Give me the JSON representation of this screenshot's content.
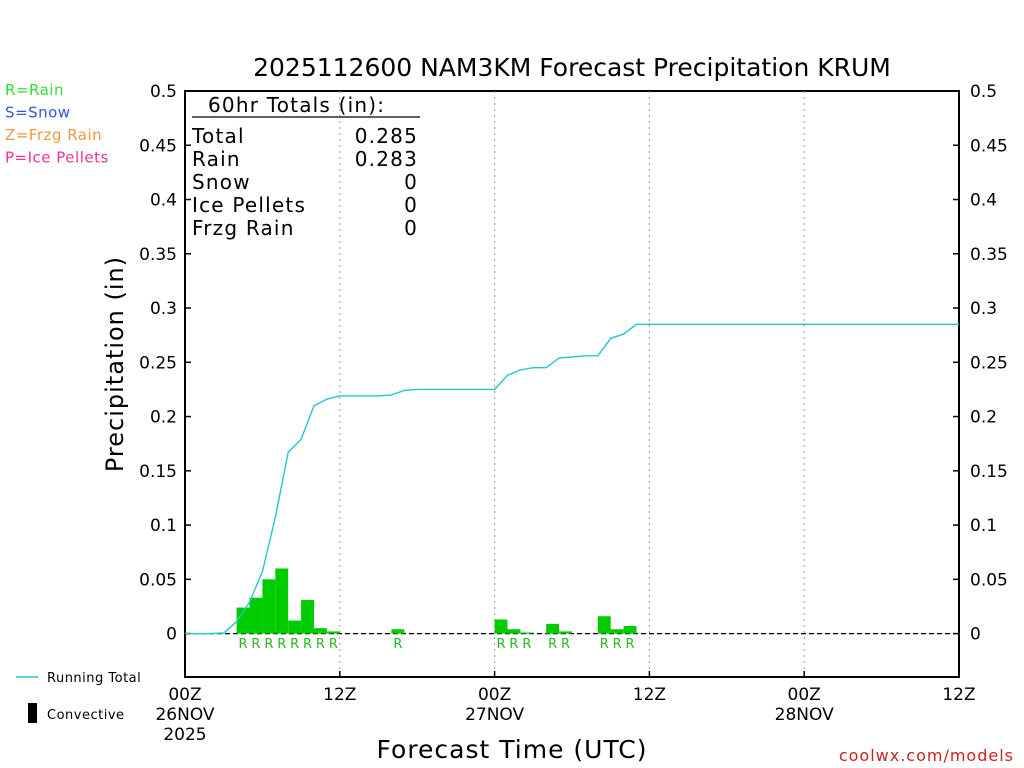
{
  "chart_data": {
    "type": "bar+line",
    "title": "2025112600 NAM3KM Forecast Precipitation KRUM",
    "xlabel": "Forecast Time (UTC)",
    "ylabel": "Precipitation (in)",
    "ylim": [
      -0.04,
      0.5
    ],
    "xlim_hours": [
      0,
      60
    ],
    "y_ticks": [
      "0",
      "0.05",
      "0.1",
      "0.15",
      "0.2",
      "0.25",
      "0.3",
      "0.35",
      "0.4",
      "0.45",
      "0.5"
    ],
    "y_tick_values": [
      0,
      0.05,
      0.1,
      0.15,
      0.2,
      0.25,
      0.3,
      0.35,
      0.4,
      0.45,
      0.5
    ],
    "x_ticks": [
      {
        "hour": 0,
        "line1": "00Z",
        "line2": "26NOV",
        "line3": "2025"
      },
      {
        "hour": 12,
        "line1": "12Z",
        "line2": "",
        "line3": ""
      },
      {
        "hour": 24,
        "line1": "00Z",
        "line2": "27NOV",
        "line3": ""
      },
      {
        "hour": 36,
        "line1": "12Z",
        "line2": "",
        "line3": ""
      },
      {
        "hour": 48,
        "line1": "00Z",
        "line2": "28NOV",
        "line3": ""
      },
      {
        "hour": 60,
        "line1": "12Z",
        "line2": "",
        "line3": ""
      }
    ],
    "grid_hours": [
      12,
      24,
      36,
      48
    ],
    "bars": [
      {
        "hour": 5,
        "value": 0.024,
        "type": "R"
      },
      {
        "hour": 6,
        "value": 0.033,
        "type": "R"
      },
      {
        "hour": 7,
        "value": 0.05,
        "type": "R"
      },
      {
        "hour": 8,
        "value": 0.06,
        "type": "R"
      },
      {
        "hour": 9,
        "value": 0.012,
        "type": "R"
      },
      {
        "hour": 10,
        "value": 0.031,
        "type": "R"
      },
      {
        "hour": 11,
        "value": 0.005,
        "type": "R"
      },
      {
        "hour": 12,
        "value": 0.002,
        "type": "R"
      },
      {
        "hour": 17,
        "value": 0.004,
        "type": "R"
      },
      {
        "hour": 25,
        "value": 0.013,
        "type": "R"
      },
      {
        "hour": 26,
        "value": 0.004,
        "type": "R"
      },
      {
        "hour": 27,
        "value": 0.001,
        "type": "R"
      },
      {
        "hour": 29,
        "value": 0.009,
        "type": "R"
      },
      {
        "hour": 30,
        "value": 0.002,
        "type": "R"
      },
      {
        "hour": 33,
        "value": 0.016,
        "type": "R"
      },
      {
        "hour": 34,
        "value": 0.004,
        "type": "R"
      },
      {
        "hour": 35,
        "value": 0.007,
        "type": "R"
      }
    ],
    "running_total": {
      "name": "Running Total",
      "color": "#22c8d0",
      "points": [
        [
          0,
          0
        ],
        [
          1,
          0
        ],
        [
          2,
          0
        ],
        [
          3,
          0.0005
        ],
        [
          4,
          0.011
        ],
        [
          5,
          0.029
        ],
        [
          6,
          0.057
        ],
        [
          7,
          0.107
        ],
        [
          8,
          0.167
        ],
        [
          9,
          0.179
        ],
        [
          10,
          0.21
        ],
        [
          11,
          0.216
        ],
        [
          12,
          0.219
        ],
        [
          13,
          0.219
        ],
        [
          14,
          0.219
        ],
        [
          15,
          0.219
        ],
        [
          16,
          0.22
        ],
        [
          17,
          0.224
        ],
        [
          18,
          0.225
        ],
        [
          19,
          0.225
        ],
        [
          20,
          0.225
        ],
        [
          21,
          0.225
        ],
        [
          22,
          0.225
        ],
        [
          23,
          0.225
        ],
        [
          24,
          0.225
        ],
        [
          25,
          0.238
        ],
        [
          26,
          0.243
        ],
        [
          27,
          0.245
        ],
        [
          28,
          0.245
        ],
        [
          29,
          0.254
        ],
        [
          30,
          0.255
        ],
        [
          31,
          0.256
        ],
        [
          32,
          0.256
        ],
        [
          33,
          0.272
        ],
        [
          34,
          0.276
        ],
        [
          35,
          0.285
        ],
        [
          60,
          0.285
        ]
      ]
    },
    "totals_box": {
      "header": "60hr Totals (in):",
      "rows": [
        {
          "label": "Total",
          "value": "0.285"
        },
        {
          "label": "Rain",
          "value": "0.283"
        },
        {
          "label": "Snow",
          "value": "0"
        },
        {
          "label": "Ice Pellets",
          "value": "0"
        },
        {
          "label": "Frzg Rain",
          "value": "0"
        }
      ]
    },
    "type_legend": [
      {
        "text": "R=Rain",
        "color": "#33dd33"
      },
      {
        "text": "S=Snow",
        "color": "#3355dd"
      },
      {
        "text": "Z=Frzg Rain",
        "color": "#ee9944"
      },
      {
        "text": "P=Ice Pellets",
        "color": "#ee3399"
      }
    ],
    "series_legend": [
      {
        "text": "Running Total",
        "kind": "line",
        "color": "#22c8d0"
      },
      {
        "text": "Convective",
        "kind": "block",
        "color": "#000000"
      }
    ],
    "bar_color": "#00cc00",
    "footer": "coolwx.com/models"
  }
}
